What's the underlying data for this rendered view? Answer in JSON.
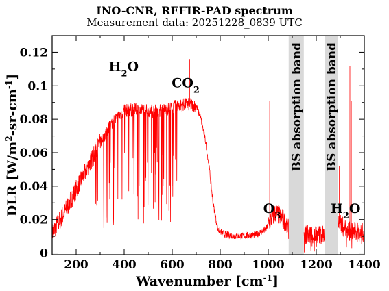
{
  "header": {
    "title": "INO-CNR, REFIR-PAD spectrum",
    "subtitle": "Measurement data: 20251228_0839 UTC"
  },
  "chart_data": {
    "type": "line",
    "title": "INO-CNR, REFIR-PAD spectrum",
    "subtitle": "Measurement data: 20251228_0839 UTC",
    "xlabel": {
      "main": "Wavenumber [cm",
      "sup": "-1",
      "close": "]"
    },
    "ylabel": {
      "p1": "DLR [W/m",
      "sup1": "2",
      "p2": "-sr-cm",
      "sup2": "-1",
      "p3": "]"
    },
    "xlim": [
      100,
      1400
    ],
    "ylim": [
      -0.001,
      0.13
    ],
    "xticks": [
      200,
      400,
      600,
      800,
      1000,
      1200,
      1400
    ],
    "yticks": [
      0,
      0.02,
      0.04,
      0.06,
      0.08,
      0.1,
      0.12
    ],
    "ytick_labels": [
      "0",
      "0.02",
      "0.04",
      "0.06",
      "0.08",
      "0.1",
      "0.12"
    ],
    "series_color": "#ff0000",
    "band_color": "#d9d9d9",
    "bands": [
      {
        "from": 1085,
        "to": 1148,
        "label": "BS absorption band"
      },
      {
        "from": 1235,
        "to": 1290,
        "label": "BS absorption band"
      }
    ],
    "annotations": [
      {
        "base": "H",
        "sub": "2",
        "tail": "O",
        "x": 398,
        "y": 0.109
      },
      {
        "base": "CO",
        "sub": "2",
        "tail": "",
        "x": 656,
        "y": 0.099
      },
      {
        "base": "O",
        "sub": "3",
        "tail": "",
        "x": 1016,
        "y": 0.024
      },
      {
        "base": "H",
        "sub": "2",
        "tail": "O",
        "x": 1322,
        "y": 0.024
      }
    ],
    "envelope": [
      [
        100,
        0.012
      ],
      [
        150,
        0.024
      ],
      [
        200,
        0.038
      ],
      [
        250,
        0.052
      ],
      [
        300,
        0.066
      ],
      [
        350,
        0.078
      ],
      [
        400,
        0.085
      ],
      [
        450,
        0.086
      ],
      [
        500,
        0.085
      ],
      [
        550,
        0.085
      ],
      [
        580,
        0.086
      ],
      [
        620,
        0.088
      ],
      [
        660,
        0.089
      ],
      [
        700,
        0.088
      ],
      [
        720,
        0.08
      ],
      [
        740,
        0.066
      ],
      [
        755,
        0.05
      ],
      [
        770,
        0.03
      ],
      [
        790,
        0.014
      ],
      [
        820,
        0.011
      ],
      [
        880,
        0.01
      ],
      [
        950,
        0.011
      ],
      [
        990,
        0.014
      ],
      [
        1010,
        0.02
      ],
      [
        1030,
        0.024
      ],
      [
        1060,
        0.021
      ],
      [
        1085,
        0.014
      ],
      [
        1150,
        0.011
      ],
      [
        1235,
        0.011
      ],
      [
        1290,
        0.018
      ],
      [
        1340,
        0.013
      ],
      [
        1400,
        0.012
      ]
    ],
    "spikes": [
      {
        "x": 673,
        "y": 0.116
      },
      {
        "x": 1006,
        "y": 0.091
      },
      {
        "x": 1296,
        "y": 0.052
      },
      {
        "x": 1340,
        "y": 0.112
      },
      {
        "x": 1346,
        "y": 0.091
      }
    ]
  }
}
